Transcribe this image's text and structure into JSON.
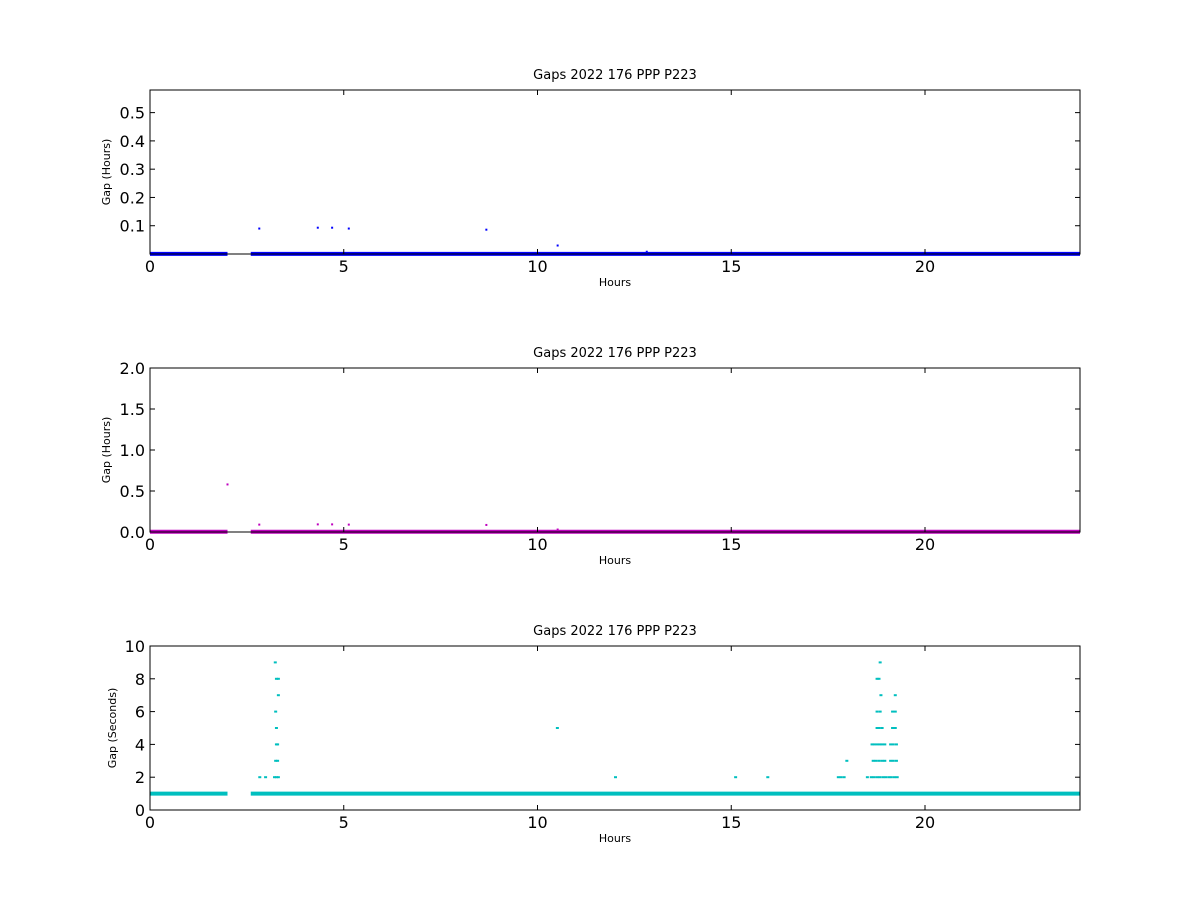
{
  "chart_data": [
    {
      "type": "scatter",
      "title": "Gaps 2022 176 PPP  P223",
      "xlabel": "Hours",
      "ylabel": "Gap (Hours)",
      "xlim": [
        0,
        24
      ],
      "ylim": [
        0,
        0.58
      ],
      "x_ticks": [
        "0",
        "5",
        "10",
        "15",
        "20"
      ],
      "x_tick_values": [
        0,
        5,
        10,
        15,
        20
      ],
      "y_ticks": [
        "0.1",
        "0.2",
        "0.3",
        "0.4",
        "0.5"
      ],
      "y_tick_values": [
        0.1,
        0.2,
        0.3,
        0.4,
        0.5
      ],
      "color": "#0000ff",
      "baseline_value": 0.0003,
      "baseline_ranges": [
        [
          0,
          2.0
        ],
        [
          2.6,
          24
        ]
      ],
      "points": [
        {
          "x": 2.82,
          "y": 0.09
        },
        {
          "x": 4.33,
          "y": 0.093
        },
        {
          "x": 4.7,
          "y": 0.093
        },
        {
          "x": 5.13,
          "y": 0.09
        },
        {
          "x": 8.68,
          "y": 0.086
        },
        {
          "x": 10.52,
          "y": 0.03
        },
        {
          "x": 12.82,
          "y": 0.008
        }
      ]
    },
    {
      "type": "scatter",
      "title": "Gaps 2022 176 PPP  P223",
      "xlabel": "Hours",
      "ylabel": "Gap (Hours)",
      "xlim": [
        0,
        24
      ],
      "ylim": [
        0,
        2.0
      ],
      "x_ticks": [
        "0",
        "5",
        "10",
        "15",
        "20"
      ],
      "x_tick_values": [
        0,
        5,
        10,
        15,
        20
      ],
      "y_ticks": [
        "0.0",
        "0.5",
        "1.0",
        "1.5",
        "2.0"
      ],
      "y_tick_values": [
        0.0,
        0.5,
        1.0,
        1.5,
        2.0
      ],
      "color": "#bf00bf",
      "baseline_value": 0.003,
      "baseline_ranges": [
        [
          0,
          2.0
        ],
        [
          2.6,
          24
        ]
      ],
      "points": [
        {
          "x": 2.0,
          "y": 0.58
        },
        {
          "x": 2.82,
          "y": 0.09
        },
        {
          "x": 4.33,
          "y": 0.093
        },
        {
          "x": 4.7,
          "y": 0.093
        },
        {
          "x": 5.13,
          "y": 0.09
        },
        {
          "x": 8.68,
          "y": 0.086
        },
        {
          "x": 10.52,
          "y": 0.03
        }
      ]
    },
    {
      "type": "scatter",
      "title": "Gaps 2022 176 PPP  P223",
      "xlabel": "Hours",
      "ylabel": "Gap (Seconds)",
      "xlim": [
        0,
        24
      ],
      "ylim": [
        0,
        10
      ],
      "x_ticks": [
        "0",
        "5",
        "10",
        "15",
        "20"
      ],
      "x_tick_values": [
        0,
        5,
        10,
        15,
        20
      ],
      "y_ticks": [
        "0",
        "2",
        "4",
        "6",
        "8",
        "10"
      ],
      "y_tick_values": [
        0,
        2,
        4,
        6,
        8,
        10
      ],
      "color": "#00bfbf",
      "baseline_value": 1,
      "baseline_ranges": [
        [
          0,
          2.0
        ],
        [
          2.6,
          24
        ]
      ],
      "points": [
        {
          "x": 2.82,
          "y": 2
        },
        {
          "x": 2.97,
          "y": 2
        },
        {
          "x": 3.22,
          "y": 9
        },
        {
          "x": 3.25,
          "y": 8
        },
        {
          "x": 3.3,
          "y": 8
        },
        {
          "x": 3.23,
          "y": 6
        },
        {
          "x": 3.3,
          "y": 7
        },
        {
          "x": 3.25,
          "y": 5
        },
        {
          "x": 3.25,
          "y": 4
        },
        {
          "x": 3.28,
          "y": 4
        },
        {
          "x": 3.23,
          "y": 3
        },
        {
          "x": 3.28,
          "y": 3
        },
        {
          "x": 3.2,
          "y": 2
        },
        {
          "x": 3.25,
          "y": 2
        },
        {
          "x": 3.3,
          "y": 2
        },
        {
          "x": 10.5,
          "y": 5
        },
        {
          "x": 12.0,
          "y": 2
        },
        {
          "x": 15.1,
          "y": 2
        },
        {
          "x": 15.93,
          "y": 2
        },
        {
          "x": 17.75,
          "y": 2
        },
        {
          "x": 17.82,
          "y": 2
        },
        {
          "x": 17.9,
          "y": 2
        },
        {
          "x": 17.97,
          "y": 3
        },
        {
          "x": 18.5,
          "y": 2
        },
        {
          "x": 18.83,
          "y": 9
        },
        {
          "x": 18.75,
          "y": 8
        },
        {
          "x": 18.8,
          "y": 8
        },
        {
          "x": 18.85,
          "y": 7
        },
        {
          "x": 19.22,
          "y": 7
        },
        {
          "x": 18.75,
          "y": 6
        },
        {
          "x": 18.83,
          "y": 6
        },
        {
          "x": 19.15,
          "y": 6
        },
        {
          "x": 19.22,
          "y": 6
        },
        {
          "x": 18.75,
          "y": 5
        },
        {
          "x": 18.8,
          "y": 5
        },
        {
          "x": 18.88,
          "y": 5
        },
        {
          "x": 19.15,
          "y": 5
        },
        {
          "x": 19.22,
          "y": 5
        },
        {
          "x": 18.62,
          "y": 4
        },
        {
          "x": 18.68,
          "y": 4
        },
        {
          "x": 18.75,
          "y": 4
        },
        {
          "x": 18.82,
          "y": 4
        },
        {
          "x": 18.88,
          "y": 4
        },
        {
          "x": 18.95,
          "y": 4
        },
        {
          "x": 19.1,
          "y": 4
        },
        {
          "x": 19.17,
          "y": 4
        },
        {
          "x": 19.25,
          "y": 4
        },
        {
          "x": 18.65,
          "y": 3
        },
        {
          "x": 18.72,
          "y": 3
        },
        {
          "x": 18.8,
          "y": 3
        },
        {
          "x": 18.88,
          "y": 3
        },
        {
          "x": 18.95,
          "y": 3
        },
        {
          "x": 19.1,
          "y": 3
        },
        {
          "x": 19.17,
          "y": 3
        },
        {
          "x": 19.25,
          "y": 3
        },
        {
          "x": 18.6,
          "y": 2
        },
        {
          "x": 18.67,
          "y": 2
        },
        {
          "x": 18.75,
          "y": 2
        },
        {
          "x": 18.82,
          "y": 2
        },
        {
          "x": 18.9,
          "y": 2
        },
        {
          "x": 18.97,
          "y": 2
        },
        {
          "x": 19.05,
          "y": 2
        },
        {
          "x": 19.12,
          "y": 2
        },
        {
          "x": 19.2,
          "y": 2
        },
        {
          "x": 19.27,
          "y": 2
        }
      ]
    }
  ]
}
